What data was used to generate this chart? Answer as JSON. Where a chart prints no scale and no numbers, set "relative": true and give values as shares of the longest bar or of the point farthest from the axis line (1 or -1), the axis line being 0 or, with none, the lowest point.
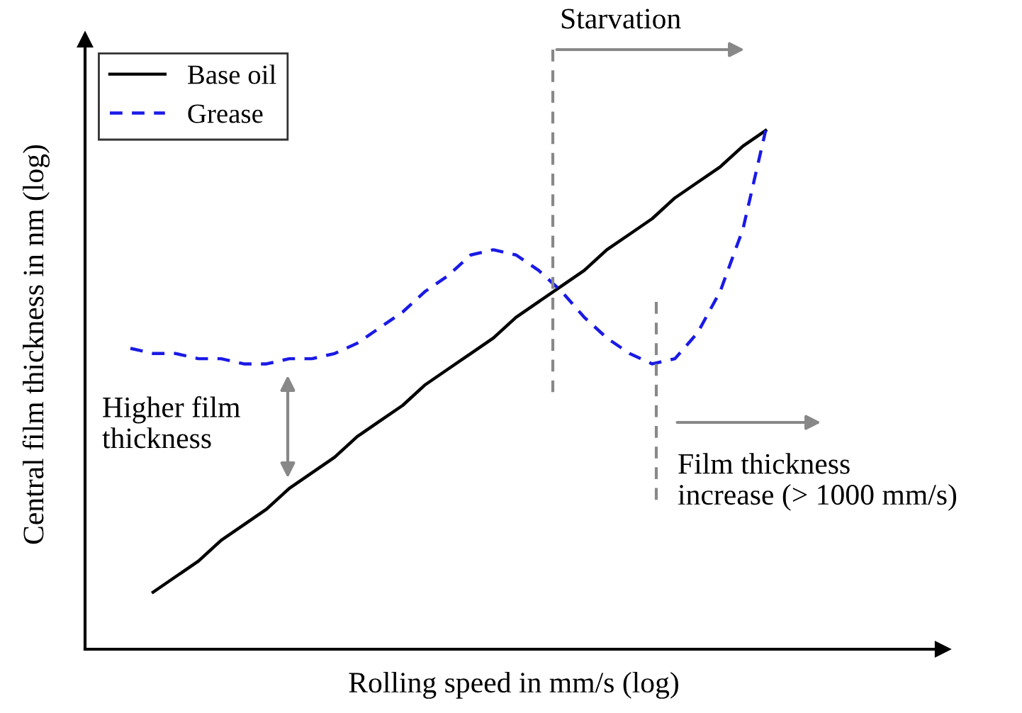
{
  "chart_data": {
    "type": "line",
    "relative": true,
    "xlabel": "Rolling speed in mm/s (log)",
    "ylabel": "Central film thickness in nm (log)",
    "categories": [
      null,
      null,
      null,
      null,
      null,
      null,
      null,
      null,
      null,
      null,
      null,
      null,
      null,
      null,
      null,
      null,
      null,
      null,
      null,
      null,
      null,
      null,
      null,
      null,
      null,
      null,
      null,
      null,
      null
    ],
    "series": [
      {
        "name": "Base oil",
        "color": "#000000",
        "line_style": "solid",
        "values": [
          null,
          0.11,
          0.14,
          0.17,
          0.21,
          0.24,
          0.27,
          0.31,
          0.34,
          0.37,
          0.41,
          0.44,
          0.47,
          0.51,
          0.54,
          0.57,
          0.6,
          0.64,
          0.67,
          0.7,
          0.73,
          0.77,
          0.8,
          0.83,
          0.87,
          0.9,
          0.93,
          0.97,
          1.0
        ]
      },
      {
        "name": "Grease",
        "color": "#1a1ae6",
        "line_style": "dashed",
        "values": [
          0.58,
          0.57,
          0.57,
          0.56,
          0.56,
          0.55,
          0.55,
          0.56,
          0.56,
          0.57,
          0.59,
          0.62,
          0.65,
          0.69,
          0.72,
          0.76,
          0.77,
          0.76,
          0.73,
          0.69,
          0.64,
          0.6,
          0.57,
          0.55,
          0.56,
          0.61,
          0.69,
          0.81,
          1.0
        ]
      }
    ],
    "legend": "top left",
    "grid": false,
    "marker": "none",
    "annotations": [
      "Starvation",
      "Higher film\nthickness",
      "Film thickness\nincrease (> 1000 mm/s)"
    ]
  }
}
